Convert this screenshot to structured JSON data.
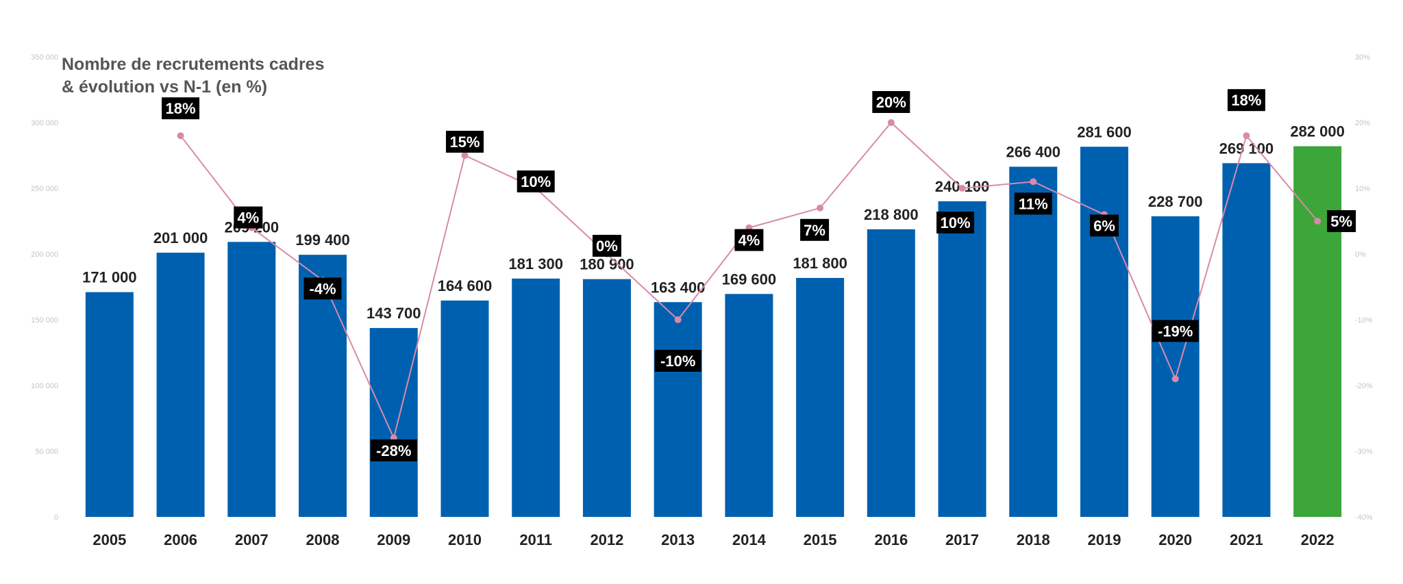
{
  "chart_data": {
    "type": "bar",
    "title": "Nombre de recrutements cadres",
    "subtitle": "& évolution vs N-1 (en %)",
    "categories": [
      "2005",
      "2006",
      "2007",
      "2008",
      "2009",
      "2010",
      "2011",
      "2012",
      "2013",
      "2014",
      "2015",
      "2016",
      "2017",
      "2018",
      "2019",
      "2020",
      "2021",
      "2022"
    ],
    "series": [
      {
        "values": [
          171000,
          201000,
          209200,
          199400,
          143700,
          164600,
          181300,
          180900,
          163400,
          169600,
          181800,
          218800,
          240100,
          266400,
          281600,
          228700,
          269100,
          282000
        ],
        "labels": [
          "171 000",
          "201 000",
          "209 200",
          "199 400",
          "143 700",
          "164 600",
          "181 300",
          "180 900",
          "163 400",
          "169 600",
          "181 800",
          "218 800",
          "240 100",
          "266 400",
          "281 600",
          "228 700",
          "269 100",
          "282 000"
        ],
        "color": "#0060B0",
        "highlight_color": "#3DA63A",
        "highlight_index": 17
      },
      {
        "type": "line",
        "axis": "right",
        "values": [
          null,
          18,
          4,
          -4,
          -28,
          15,
          10,
          0,
          -10,
          4,
          7,
          20,
          10,
          11,
          6,
          -19,
          18,
          5
        ],
        "labels": [
          "",
          "18%",
          "4%",
          "-4%",
          "-28%",
          "15%",
          "10%",
          "0%",
          "-10%",
          "4%",
          "7%",
          "20%",
          "10%",
          "11%",
          "6%",
          "-19%",
          "18%",
          "5%"
        ],
        "color": "#D98AA8"
      }
    ],
    "y_left": {
      "ylim": [
        0,
        350000
      ],
      "ticks": [
        0,
        50000,
        100000,
        150000,
        200000,
        250000,
        300000,
        350000
      ],
      "tick_labels": [
        "0",
        "50 000",
        "100 000",
        "150 000",
        "200 000",
        "250 000",
        "300 000",
        "350 000"
      ]
    },
    "y_right": {
      "ylim": [
        -40,
        30
      ],
      "ticks": [
        -40,
        -30,
        -20,
        -10,
        0,
        10,
        20,
        30
      ],
      "tick_labels": [
        "-40%",
        "-30%",
        "-20%",
        "-10%",
        "0%",
        "10%",
        "20%",
        "30%"
      ]
    },
    "grid": false,
    "legend": false
  }
}
